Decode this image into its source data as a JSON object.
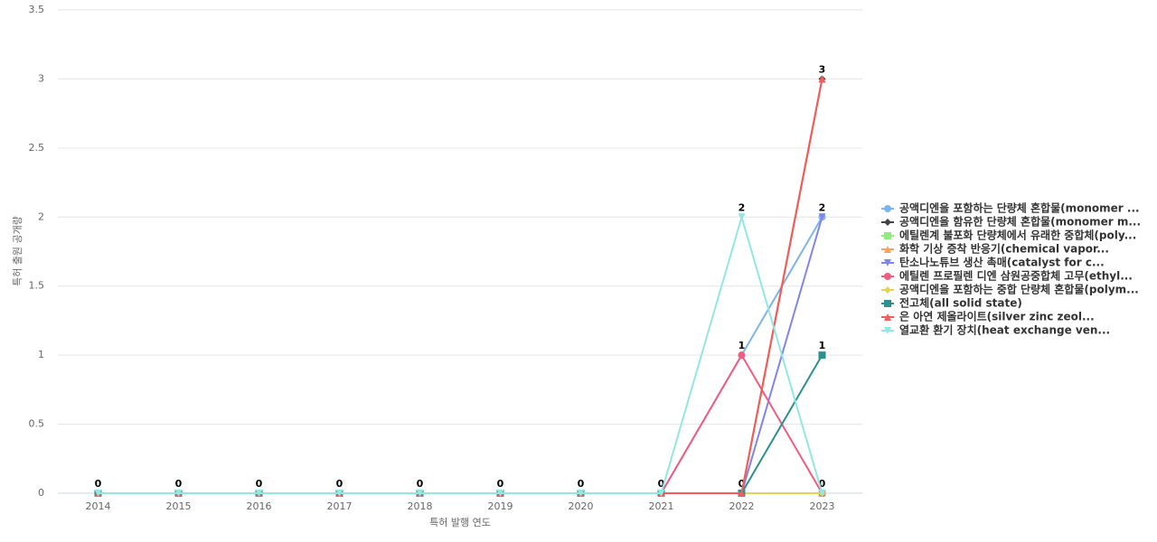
{
  "chart_data": {
    "type": "line",
    "x_label": "특허 발행 연도",
    "y_label": "특허 출원 공개량",
    "categories": [
      "2014",
      "2015",
      "2016",
      "2017",
      "2018",
      "2019",
      "2020",
      "2021",
      "2022",
      "2023"
    ],
    "ylim": [
      0,
      3.5
    ],
    "yticks": [
      0,
      0.5,
      1,
      1.5,
      2,
      2.5,
      3,
      3.5
    ],
    "grid": true,
    "series": [
      {
        "name": "공액디엔을 포함하는 단량체 혼합물(monomer ...",
        "color": "#7cb5ec",
        "marker": "circle",
        "values": [
          0,
          0,
          0,
          0,
          0,
          0,
          0,
          0,
          1,
          2
        ]
      },
      {
        "name": "공액디엔을 함유한 단량체 혼합물(monomer m...",
        "color": "#434348",
        "marker": "diamond",
        "values": [
          0,
          0,
          0,
          0,
          0,
          0,
          0,
          0,
          0,
          3
        ]
      },
      {
        "name": "에틸렌계 불포화 단량체에서 유래한 중합체(poly...",
        "color": "#90ed7d",
        "marker": "square",
        "values": [
          0,
          0,
          0,
          0,
          0,
          0,
          0,
          0,
          0,
          0
        ]
      },
      {
        "name": "화학 기상 증착 반응기(chemical vapor...",
        "color": "#f7a35c",
        "marker": "triangle",
        "values": [
          0,
          0,
          0,
          0,
          0,
          0,
          0,
          0,
          0,
          3
        ]
      },
      {
        "name": "탄소나노튜브 생산 촉매(catalyst for c...",
        "color": "#8085e9",
        "marker": "triangle-down",
        "values": [
          0,
          0,
          0,
          0,
          0,
          0,
          0,
          0,
          0,
          2
        ]
      },
      {
        "name": "에틸렌 프로필렌 디엔 삼원공중합체 고무(ethyl...",
        "color": "#f15c80",
        "marker": "circle",
        "values": [
          0,
          0,
          0,
          0,
          0,
          0,
          0,
          0,
          1,
          0
        ]
      },
      {
        "name": "공액디엔을 포함하는 중합 단량체 혼합물(polym...",
        "color": "#e4d354",
        "marker": "diamond",
        "values": [
          0,
          0,
          0,
          0,
          0,
          0,
          0,
          0,
          0,
          0
        ]
      },
      {
        "name": "전고체(all solid state)",
        "color": "#2b908f",
        "marker": "square",
        "values": [
          0,
          0,
          0,
          0,
          0,
          0,
          0,
          0,
          0,
          1
        ]
      },
      {
        "name": "은 아연 제올라이트(silver zinc zeol...",
        "color": "#f45b5b",
        "marker": "triangle",
        "values": [
          0,
          0,
          0,
          0,
          0,
          0,
          0,
          0,
          0,
          3
        ]
      },
      {
        "name": "열교환 환기 장치(heat exchange ven...",
        "color": "#91e8e1",
        "marker": "triangle-down",
        "values": [
          0,
          0,
          0,
          0,
          0,
          0,
          0,
          0,
          2,
          0
        ]
      }
    ]
  }
}
